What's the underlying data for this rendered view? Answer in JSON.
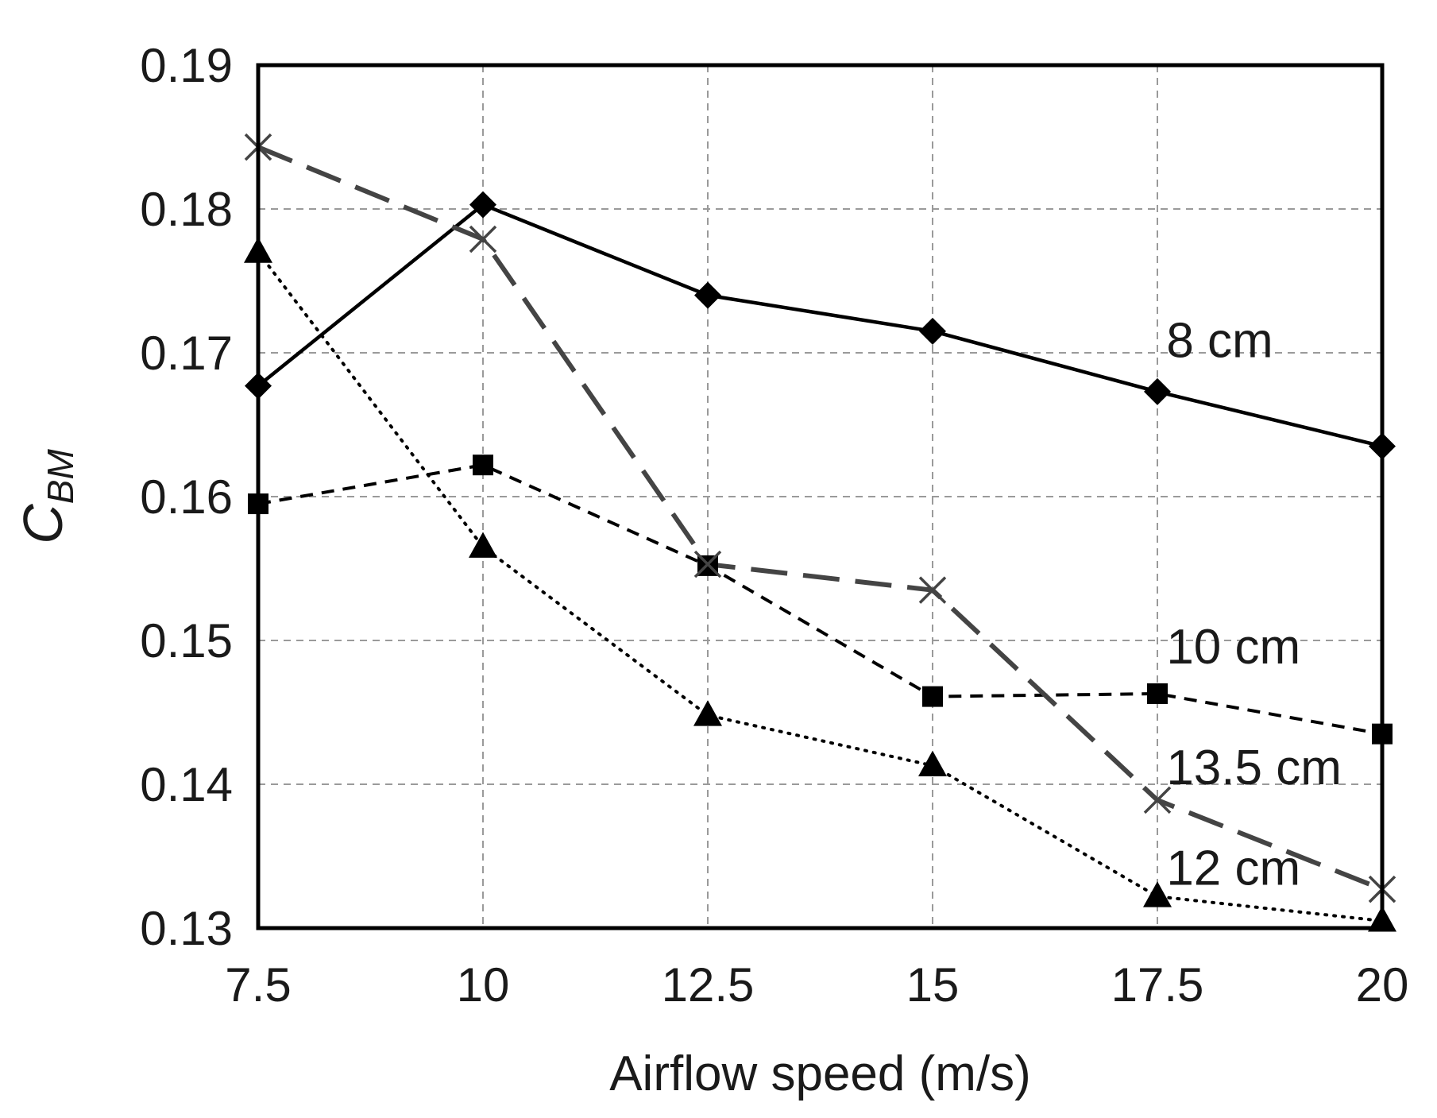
{
  "chart_data": {
    "type": "line",
    "title": "",
    "xlabel": "Airflow speed (m/s)",
    "ylabel": {
      "main": "C",
      "subscript": "BM"
    },
    "x": [
      7.5,
      10,
      12.5,
      15,
      17.5,
      20
    ],
    "x_tick_labels": [
      "7.5",
      "10",
      "12.5",
      "15",
      "17.5",
      "20"
    ],
    "y_tick_values": [
      0.13,
      0.14,
      0.15,
      0.16,
      0.17,
      0.18,
      0.19
    ],
    "y_tick_labels": [
      "0.13",
      "0.14",
      "0.15",
      "0.16",
      "0.17",
      "0.18",
      "0.19"
    ],
    "xlim": [
      7.5,
      20
    ],
    "ylim": [
      0.13,
      0.19
    ],
    "grid": true,
    "series": [
      {
        "name": "8 cm",
        "label": "8 cm",
        "label_at": [
          17.6,
          0.1697
        ],
        "marker": "diamond",
        "line": "solid",
        "color": "#000000",
        "values": [
          0.1677,
          0.1803,
          0.174,
          0.1715,
          0.1673,
          0.1635
        ]
      },
      {
        "name": "10 cm",
        "label": "10 cm",
        "label_at": [
          17.6,
          0.1484
        ],
        "marker": "square",
        "line": "dashed",
        "color": "#000000",
        "values": [
          0.1595,
          0.1622,
          0.1552,
          0.1461,
          0.1463,
          0.1435
        ]
      },
      {
        "name": "13.5 cm",
        "label": "13.5 cm",
        "label_at": [
          17.6,
          0.14
        ],
        "marker": "x",
        "line": "long-dashed",
        "color": "#444444",
        "values": [
          0.1843,
          0.1779,
          0.1553,
          0.1535,
          0.1389,
          0.1327
        ]
      },
      {
        "name": "12 cm",
        "label": "12 cm",
        "label_at": [
          17.6,
          0.133
        ],
        "marker": "triangle",
        "line": "dotted",
        "color": "#000000",
        "values": [
          0.177,
          0.1565,
          0.1448,
          0.1413,
          0.1322,
          0.1305
        ]
      }
    ]
  }
}
